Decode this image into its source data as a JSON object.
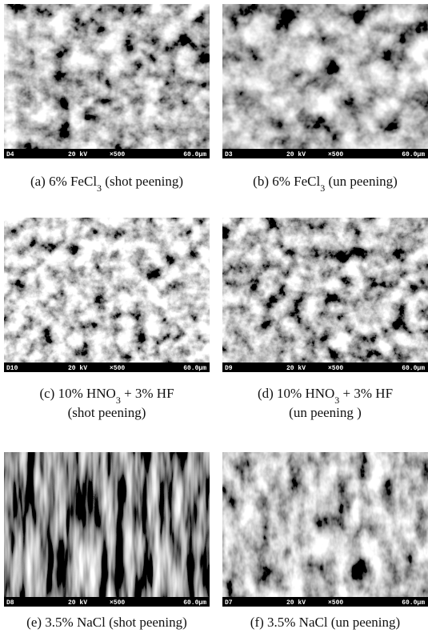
{
  "panels": [
    {
      "image_bar": {
        "id": "D4",
        "voltage": "20 kV",
        "magnification": "×500",
        "scale": "60.0µm"
      },
      "caption_lines": [
        [
          {
            "text": "(a) 6% FeCl"
          },
          {
            "text": "3",
            "sub": true
          },
          {
            "text": " (shot peening)"
          }
        ]
      ]
    },
    {
      "image_bar": {
        "id": "D3",
        "voltage": "20 kV",
        "magnification": "×500",
        "scale": "60.0µm"
      },
      "caption_lines": [
        [
          {
            "text": "(b) 6% FeCl"
          },
          {
            "text": "3",
            "sub": true
          },
          {
            "text": " (un peening)"
          }
        ]
      ]
    },
    {
      "image_bar": {
        "id": "D10",
        "voltage": "20 kV",
        "magnification": "×500",
        "scale": "60.0µm"
      },
      "caption_lines": [
        [
          {
            "text": "(c) 10% HNO"
          },
          {
            "text": "3",
            "sub": true
          },
          {
            "text": " + 3% HF"
          }
        ],
        [
          {
            "text": "(shot peening)"
          }
        ]
      ]
    },
    {
      "image_bar": {
        "id": "D9",
        "voltage": "20 kV",
        "magnification": "×500",
        "scale": "60.0µm"
      },
      "caption_lines": [
        [
          {
            "text": "(d) 10% HNO"
          },
          {
            "text": "3",
            "sub": true
          },
          {
            "text": " + 3% HF"
          }
        ],
        [
          {
            "text": "(un peening )"
          }
        ]
      ]
    },
    {
      "image_bar": {
        "id": "D8",
        "voltage": "20 kV",
        "magnification": "×500",
        "scale": "60.0µm"
      },
      "caption_lines": [
        [
          {
            "text": "(e) 3.5% NaCl (shot peening)"
          }
        ]
      ]
    },
    {
      "image_bar": {
        "id": "D7",
        "voltage": "20 kV",
        "magnification": "×500",
        "scale": "60.0µm"
      },
      "caption_lines": [
        [
          {
            "text": "(f) 3.5% NaCl (un peening)"
          }
        ]
      ]
    }
  ]
}
